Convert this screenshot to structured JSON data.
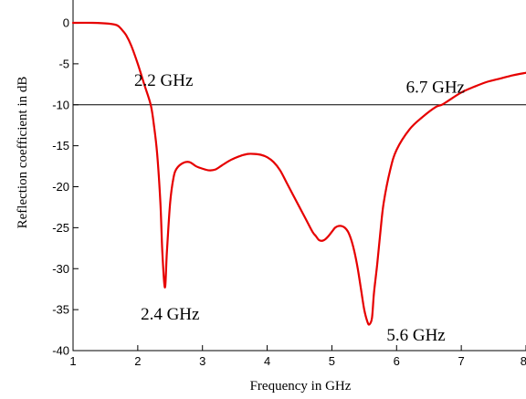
{
  "chart_data": {
    "type": "line",
    "title": "",
    "xlabel": "Frequency in GHz",
    "ylabel": "Reflection coefficient in dB",
    "xlim": [
      1,
      8
    ],
    "ylim": [
      -40,
      0
    ],
    "xticks": [
      1,
      2,
      3,
      4,
      5,
      6,
      7,
      8
    ],
    "yticks": [
      0,
      -5,
      -10,
      -15,
      -20,
      -25,
      -30,
      -35,
      -40
    ],
    "xtick_labels": [
      "1",
      "2",
      "3",
      "4",
      "5",
      "6",
      "7",
      "8"
    ],
    "ytick_labels": [
      "0",
      "-5",
      "-10",
      "-15",
      "-20",
      "-25",
      "-30",
      "-35",
      "-40"
    ],
    "grid": false,
    "reference_line": {
      "y": -10,
      "color": "#000000"
    },
    "series": [
      {
        "color": "#e60000",
        "x": [
          1.0,
          1.3,
          1.55,
          1.68,
          1.75,
          1.82,
          1.9,
          2.0,
          2.1,
          2.2,
          2.25,
          2.3,
          2.35,
          2.38,
          2.42,
          2.45,
          2.5,
          2.55,
          2.6,
          2.7,
          2.8,
          2.9,
          3.0,
          3.1,
          3.2,
          3.3,
          3.4,
          3.5,
          3.6,
          3.7,
          3.8,
          3.9,
          4.0,
          4.1,
          4.2,
          4.3,
          4.4,
          4.5,
          4.6,
          4.7,
          4.75,
          4.8,
          4.85,
          4.9,
          4.95,
          5.0,
          5.05,
          5.1,
          5.15,
          5.2,
          5.25,
          5.3,
          5.35,
          5.4,
          5.45,
          5.5,
          5.55,
          5.58,
          5.62,
          5.65,
          5.7,
          5.75,
          5.8,
          5.9,
          6.0,
          6.2,
          6.4,
          6.6,
          6.7,
          6.8,
          7.0,
          7.2,
          7.4,
          7.6,
          7.8,
          8.0
        ],
        "y": [
          0.0,
          0.0,
          -0.1,
          -0.3,
          -0.8,
          -1.5,
          -2.8,
          -5.0,
          -7.5,
          -10.0,
          -12.5,
          -16.0,
          -22.0,
          -28.0,
          -32.3,
          -28.0,
          -22.0,
          -19.0,
          -17.8,
          -17.1,
          -17.0,
          -17.5,
          -17.8,
          -18.0,
          -17.9,
          -17.4,
          -16.9,
          -16.5,
          -16.2,
          -16.0,
          -16.0,
          -16.1,
          -16.4,
          -17.0,
          -18.0,
          -19.5,
          -21.0,
          -22.5,
          -24.0,
          -25.5,
          -26.0,
          -26.5,
          -26.6,
          -26.4,
          -26.0,
          -25.5,
          -25.0,
          -24.8,
          -24.8,
          -25.0,
          -25.5,
          -26.5,
          -28.0,
          -30.0,
          -32.5,
          -35.0,
          -36.5,
          -36.8,
          -36.0,
          -33.0,
          -29.5,
          -25.5,
          -22.0,
          -18.0,
          -15.5,
          -13.0,
          -11.5,
          -10.3,
          -10.0,
          -9.5,
          -8.5,
          -7.8,
          -7.2,
          -6.8,
          -6.4,
          -6.1
        ]
      }
    ],
    "annotations": [
      {
        "text": "2.2 GHz",
        "x": 2.4,
        "y": -7.7
      },
      {
        "text": "6.7 GHz",
        "x": 6.6,
        "y": -8.5
      },
      {
        "text": "2.4 GHz",
        "x": 2.5,
        "y": -36.2
      },
      {
        "text": "5.6 GHz",
        "x": 6.3,
        "y": -38.8
      }
    ]
  }
}
